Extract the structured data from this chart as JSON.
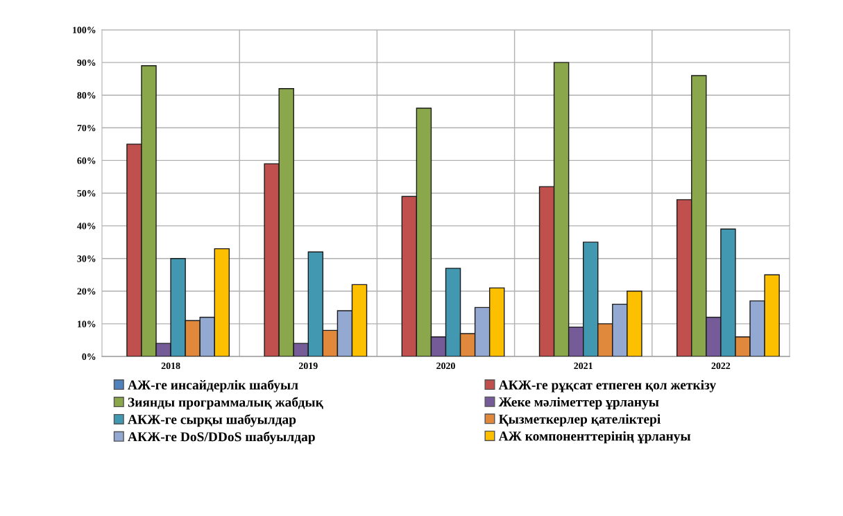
{
  "chart_data": {
    "type": "bar",
    "categories": [
      "2018",
      "2019",
      "2020",
      "2021",
      "2022"
    ],
    "series": [
      {
        "name": "АЖ-ге инсайдерлік шабуыл",
        "color": "#4f81bd",
        "values": [
          null,
          null,
          null,
          null,
          null
        ]
      },
      {
        "name": "АКЖ-ге рұқсат етпеген қол жеткізу",
        "color": "#c0504d",
        "values": [
          65,
          59,
          49,
          52,
          48
        ]
      },
      {
        "name": "Зиянды программалық жабдық",
        "color": "#8aa84b",
        "values": [
          89,
          82,
          76,
          90,
          86
        ]
      },
      {
        "name": "Жеке мәліметтер ұрлануы",
        "color": "#755c98",
        "values": [
          4,
          4,
          6,
          9,
          12
        ]
      },
      {
        "name": "АКЖ-ге сырқы шабуылдар",
        "color": "#4198b0",
        "values": [
          30,
          32,
          27,
          35,
          39
        ]
      },
      {
        "name": "Қызметкерлер қателіктері",
        "color": "#e0883b",
        "values": [
          11,
          8,
          7,
          10,
          6
        ]
      },
      {
        "name": "АКЖ-ге DoS/DDoS шабуылдар",
        "color": "#93a9d1",
        "values": [
          12,
          14,
          15,
          16,
          17
        ]
      },
      {
        "name": "АЖ компоненттерінің ұрлануы",
        "color": "#fdc000",
        "values": [
          33,
          22,
          21,
          20,
          25
        ]
      }
    ],
    "ylim": [
      0,
      100
    ],
    "yticks": [
      {
        "value": 0,
        "label": "0%"
      },
      {
        "value": 10,
        "label": "10%"
      },
      {
        "value": 20,
        "label": "20%"
      },
      {
        "value": 30,
        "label": "30%"
      },
      {
        "value": 40,
        "label": "40%"
      },
      {
        "value": 50,
        "label": "50%"
      },
      {
        "value": 60,
        "label": "60%"
      },
      {
        "value": 70,
        "label": "70%"
      },
      {
        "value": 80,
        "label": "80%"
      },
      {
        "value": 90,
        "label": "90%"
      },
      {
        "value": 100,
        "label": "100%"
      }
    ],
    "grid": true,
    "legend": "bottom"
  }
}
